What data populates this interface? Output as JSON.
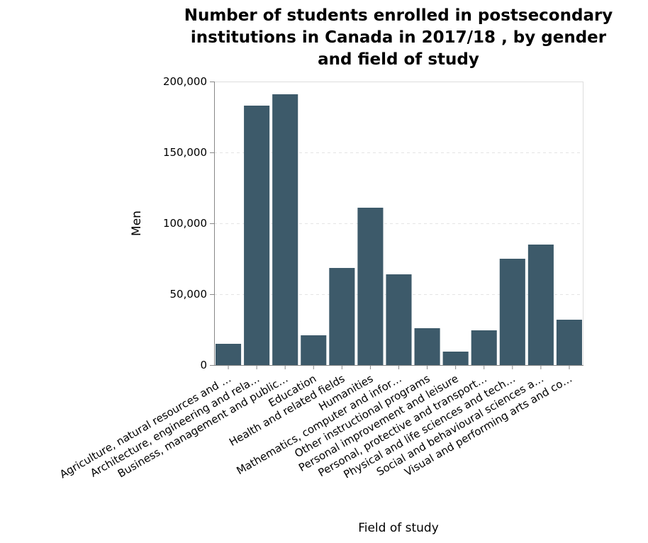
{
  "chart_data": {
    "type": "bar",
    "title_lines": [
      "Number of students enrolled in postsecondary",
      "institutions in Canada in 2017/18 , by gender",
      "and field of study"
    ],
    "xlabel": "Field of study",
    "ylabel": "Men",
    "ylim": [
      0,
      200000
    ],
    "yticks": [
      0,
      50000,
      100000,
      150000,
      200000
    ],
    "ytick_labels": [
      "0",
      "50,000",
      "100,000",
      "150,000",
      "200,000"
    ],
    "grid": "horizontal dashed",
    "categories": [
      "Agriculture, natural resources and …",
      "Architecture, engineering and rela…",
      "Business, management and public…",
      "Education",
      "Health and related fields",
      "Humanities",
      "Mathematics, computer and infor…",
      "Other instructional programs",
      "Personal improvement and leisure",
      "Personal, protective and transport…",
      "Physical and life sciences and tech…",
      "Social and behavioural sciences a…",
      "Visual and performing arts and co…"
    ],
    "values": [
      15000,
      183000,
      191000,
      21000,
      68500,
      111000,
      64000,
      26000,
      9500,
      24500,
      75000,
      85000,
      32000
    ],
    "bar_color": "#3d5a6a"
  }
}
